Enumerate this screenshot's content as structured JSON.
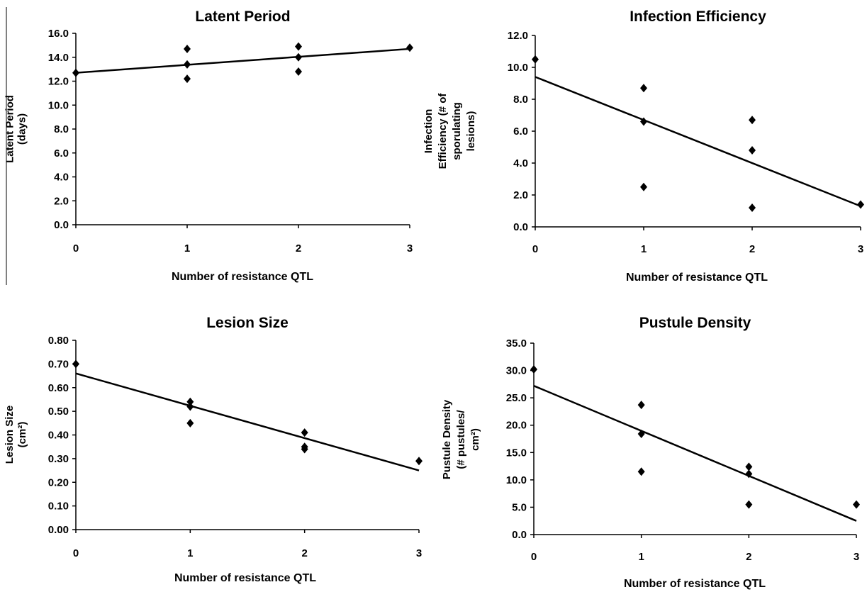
{
  "chart_data": [
    {
      "type": "scatter",
      "title": "Latent Period",
      "ylabel_lines": [
        "Latent Period",
        "(days)"
      ],
      "xlabel": "Number of resistance QTL",
      "xlim": [
        0,
        3
      ],
      "ylim": [
        0,
        16
      ],
      "xticks": [
        "0",
        "1",
        "2",
        "3"
      ],
      "yticks": [
        "0.0",
        "2.0",
        "4.0",
        "6.0",
        "8.0",
        "10.0",
        "12.0",
        "14.0",
        "16.0"
      ],
      "points": [
        [
          0,
          12.7
        ],
        [
          1,
          14.7
        ],
        [
          1,
          13.4
        ],
        [
          1,
          12.2
        ],
        [
          2,
          14.9
        ],
        [
          2,
          14.0
        ],
        [
          2,
          12.8
        ],
        [
          3,
          14.8
        ]
      ],
      "trendline": [
        [
          0,
          12.7
        ],
        [
          3,
          14.7
        ]
      ]
    },
    {
      "type": "scatter",
      "title": "Infection Efficiency",
      "ylabel_lines": [
        "Infection",
        "Efficiency (# of",
        "sporulating",
        "lesions)"
      ],
      "xlabel": "Number of resistance QTL",
      "xlim": [
        0,
        3
      ],
      "ylim": [
        0,
        12
      ],
      "xticks": [
        "0",
        "1",
        "2",
        "3"
      ],
      "yticks": [
        "0.0",
        "2.0",
        "4.0",
        "6.0",
        "8.0",
        "10.0",
        "12.0"
      ],
      "points": [
        [
          0,
          10.5
        ],
        [
          1,
          8.7
        ],
        [
          1,
          6.6
        ],
        [
          1,
          2.5
        ],
        [
          2,
          6.7
        ],
        [
          2,
          4.8
        ],
        [
          2,
          1.2
        ],
        [
          3,
          1.4
        ]
      ],
      "trendline": [
        [
          0,
          9.4
        ],
        [
          3,
          1.3
        ]
      ]
    },
    {
      "type": "scatter",
      "title": "Lesion Size",
      "ylabel_lines": [
        "Lesion Size",
        "(cm²)"
      ],
      "xlabel": "Number of resistance QTL",
      "xlim": [
        0,
        3
      ],
      "ylim": [
        0,
        0.8
      ],
      "xticks": [
        "0",
        "1",
        "2",
        "3"
      ],
      "yticks": [
        "0.00",
        "0.10",
        "0.20",
        "0.30",
        "0.40",
        "0.50",
        "0.60",
        "0.70",
        "0.80"
      ],
      "points": [
        [
          0,
          0.7
        ],
        [
          1,
          0.54
        ],
        [
          1,
          0.52
        ],
        [
          1,
          0.45
        ],
        [
          2,
          0.41
        ],
        [
          2,
          0.35
        ],
        [
          2,
          0.34
        ],
        [
          3,
          0.29
        ]
      ],
      "trendline": [
        [
          0,
          0.66
        ],
        [
          3,
          0.25
        ]
      ]
    },
    {
      "type": "scatter",
      "title": "Pustule Density",
      "ylabel_lines": [
        "Pustule Density",
        "(# pustules/",
        "cm²)"
      ],
      "xlabel": "Number of resistance QTL",
      "xlim": [
        0,
        3
      ],
      "ylim": [
        0,
        35
      ],
      "xticks": [
        "0",
        "1",
        "2",
        "3"
      ],
      "yticks": [
        "0.0",
        "5.0",
        "10.0",
        "15.0",
        "20.0",
        "25.0",
        "30.0",
        "35.0"
      ],
      "points": [
        [
          0,
          30.2
        ],
        [
          1,
          23.7
        ],
        [
          1,
          18.4
        ],
        [
          1,
          11.5
        ],
        [
          2,
          12.4
        ],
        [
          2,
          11.1
        ],
        [
          2,
          5.5
        ],
        [
          3,
          5.5
        ]
      ],
      "trendline": [
        [
          0,
          27.2
        ],
        [
          3,
          2.5
        ]
      ]
    }
  ]
}
